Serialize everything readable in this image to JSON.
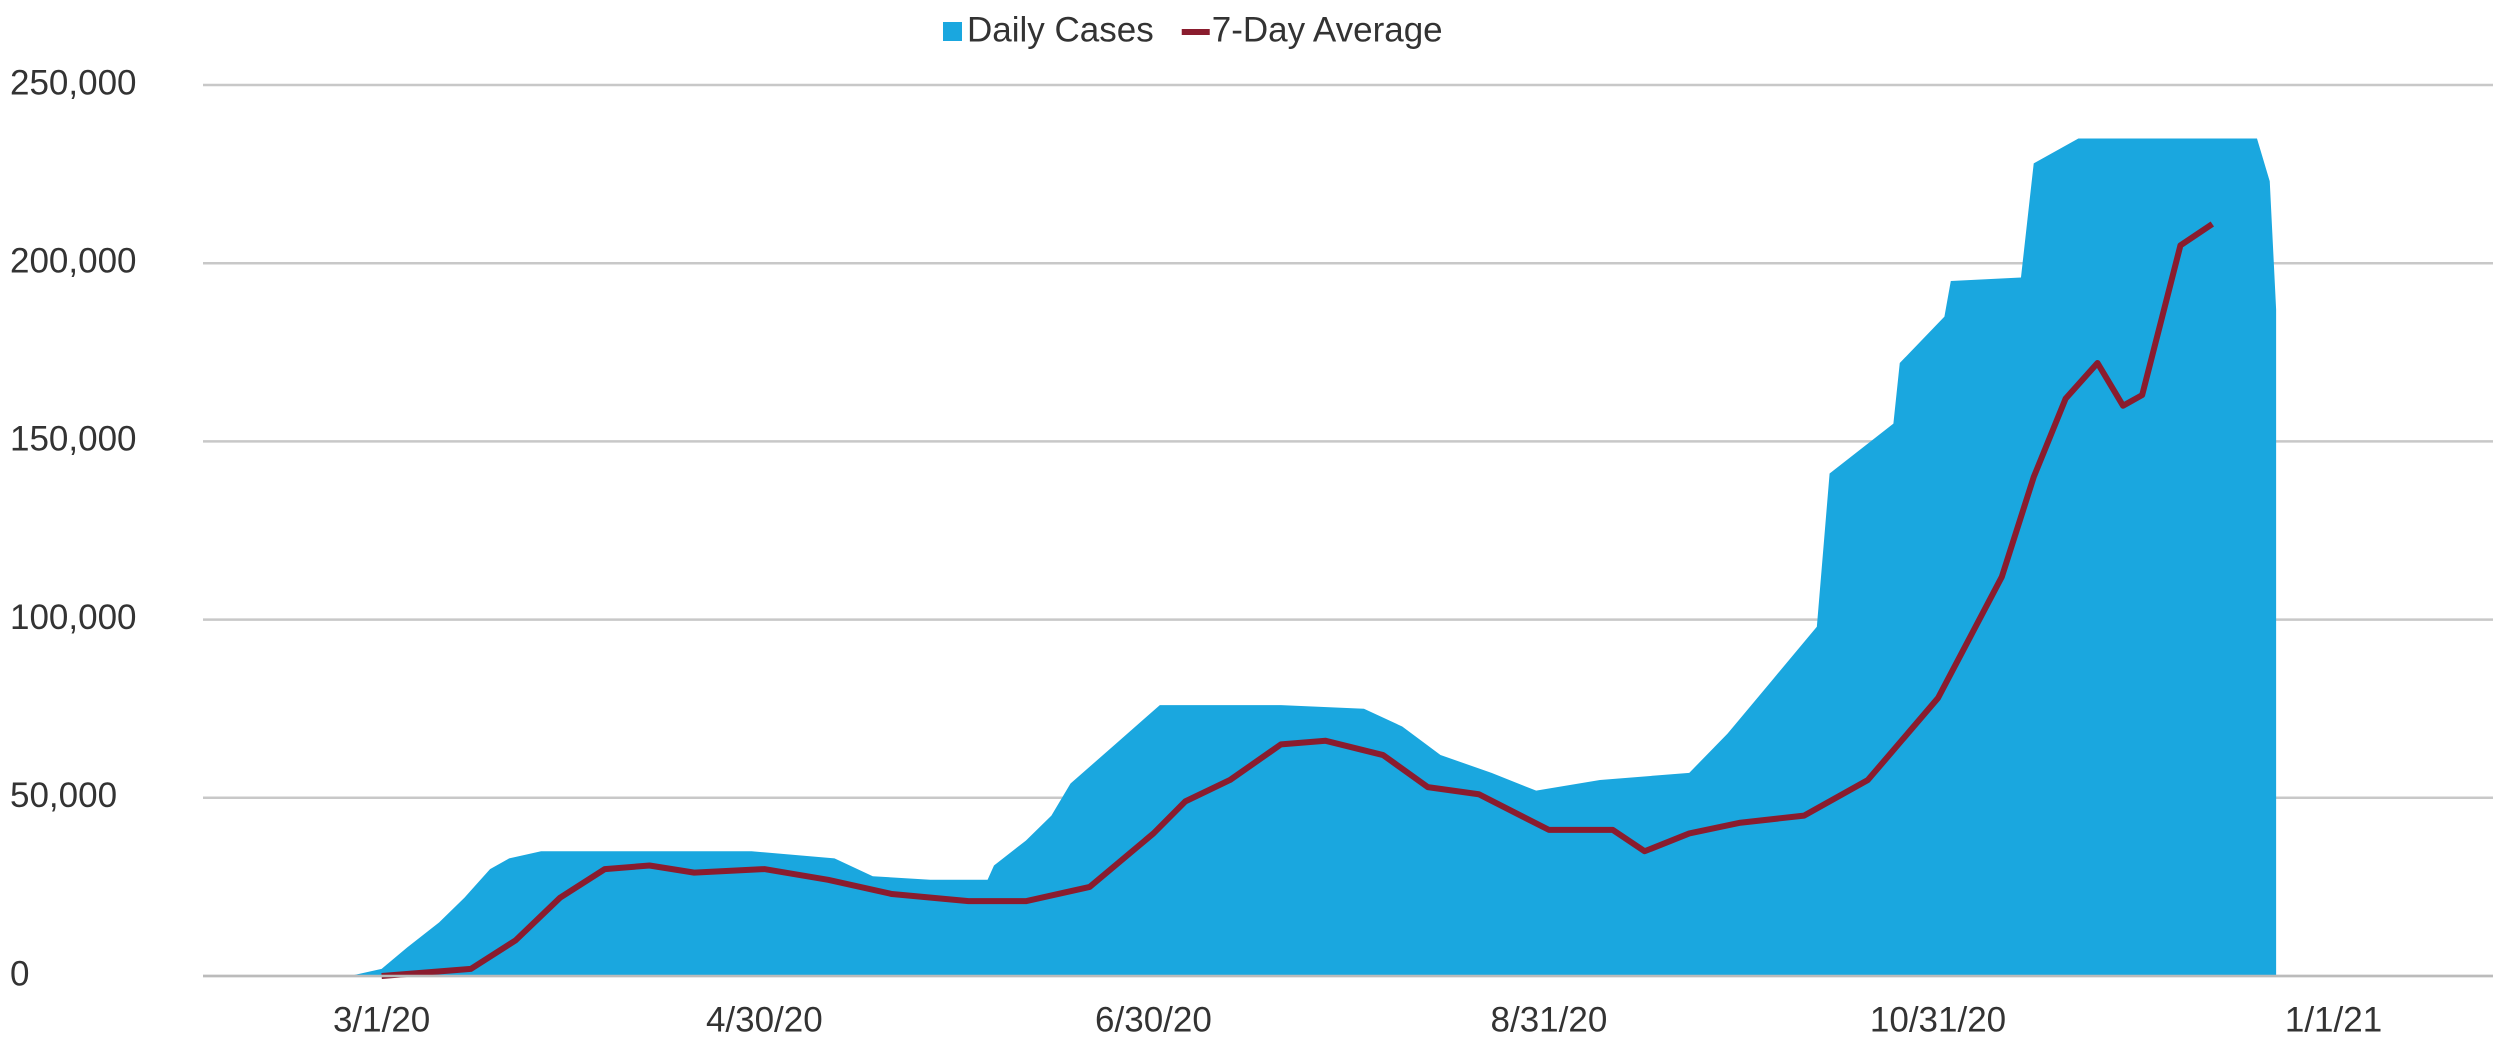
{
  "chart_data": {
    "type": "area_line",
    "legend": "top",
    "grid": true,
    "xlim": [
      "2/2/20",
      "1/26/21"
    ],
    "xticks": [
      "3/1/20",
      "4/30/20",
      "6/30/20",
      "8/31/20",
      "10/31/20",
      "1/1/21"
    ],
    "ylim": [
      0,
      250000
    ],
    "yticks": [
      0,
      {
        "value": 50000,
        "label": "50,000"
      },
      {
        "value": 100000,
        "label": "100,000"
      },
      {
        "value": 150000,
        "label": "150,000"
      },
      {
        "value": 200000,
        "label": "200,000"
      },
      {
        "value": 250000,
        "label": "250,000"
      }
    ],
    "series": [
      {
        "name": "Daily Cases",
        "color": "#1aa7df",
        "kind": "area",
        "x": [
          "2/25/20",
          "3/1/20",
          "3/5/20",
          "3/10/20",
          "3/14/20",
          "3/18/20",
          "3/21/20",
          "3/26/20",
          "4/10/20",
          "4/28/20",
          "5/11/20",
          "5/17/20",
          "5/26/20",
          "6/4/20",
          "6/5/20",
          "6/10/20",
          "6/14/20",
          "6/17/20",
          "6/24/20",
          "7/1/20",
          "7/20/20",
          "8/2/20",
          "8/8/20",
          "8/14/20",
          "8/22/20",
          "8/29/20",
          "9/8/20",
          "9/22/20",
          "9/28/20",
          "10/5/20",
          "10/12/20",
          "10/14/20",
          "10/24/20",
          "10/25/20",
          "11/1/20",
          "11/2/20",
          "11/13/20",
          "11/15/20",
          "11/22/20",
          "12/20/20",
          "12/22/20",
          "12/23/20"
        ],
        "values": [
          0,
          2000,
          8000,
          15000,
          22000,
          30000,
          33000,
          35000,
          35000,
          35000,
          33000,
          28000,
          27000,
          27000,
          31000,
          38000,
          45000,
          54000,
          65000,
          76000,
          76000,
          75000,
          70000,
          62000,
          57000,
          52000,
          55000,
          57000,
          68000,
          83000,
          98000,
          141000,
          155000,
          172000,
          185000,
          195000,
          196000,
          228000,
          235000,
          235000,
          223000,
          187000
        ]
      },
      {
        "name": "7-Day Average",
        "color": "#8a1c2e",
        "kind": "line",
        "x": [
          "3/1/20",
          "3/15/20",
          "3/22/20",
          "3/29/20",
          "4/5/20",
          "4/12/20",
          "4/19/20",
          "4/30/20",
          "5/10/20",
          "5/20/20",
          "6/1/20",
          "6/10/20",
          "6/20/20",
          "6/30/20",
          "7/5/20",
          "7/12/20",
          "7/20/20",
          "7/27/20",
          "8/5/20",
          "8/12/20",
          "8/20/20",
          "8/31/20",
          "9/10/20",
          "9/15/20",
          "9/22/20",
          "9/30/20",
          "10/10/20",
          "10/20/20",
          "10/31/20",
          "11/5/20",
          "11/10/20",
          "11/15/20",
          "11/20/20",
          "11/25/20",
          "11/29/20",
          "12/2/20",
          "12/8/20",
          "12/13/20"
        ],
        "values": [
          0,
          2000,
          10000,
          22000,
          30000,
          31000,
          29000,
          30000,
          27000,
          23000,
          21000,
          21000,
          25000,
          40000,
          49000,
          55000,
          65000,
          66000,
          62000,
          53000,
          51000,
          41000,
          41000,
          35000,
          40000,
          43000,
          45000,
          55000,
          78000,
          95000,
          112000,
          140000,
          162000,
          172000,
          160000,
          163000,
          205000,
          211000
        ]
      }
    ]
  }
}
